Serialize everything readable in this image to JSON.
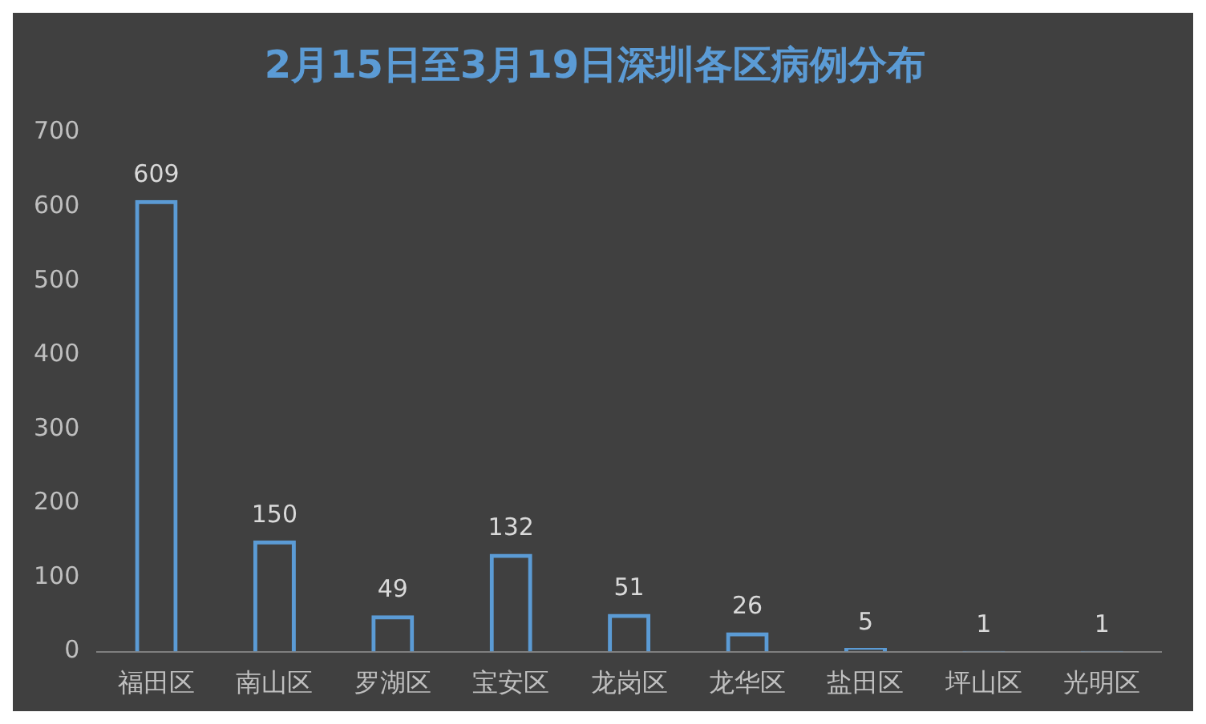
{
  "chart_data": {
    "type": "bar",
    "title": "2月15日至3月19日深圳各区病例分布",
    "categories": [
      "福田区",
      "南山区",
      "罗湖区",
      "宝安区",
      "龙岗区",
      "龙华区",
      "盐田区",
      "坪山区",
      "光明区"
    ],
    "values": [
      609,
      150,
      49,
      132,
      51,
      26,
      5,
      1,
      1
    ],
    "color": "#5b9bd5",
    "ylim": [
      0,
      700
    ],
    "yticks": [
      0,
      100,
      200,
      300,
      400,
      500,
      600,
      700
    ],
    "grid": false,
    "data_labels": true
  }
}
